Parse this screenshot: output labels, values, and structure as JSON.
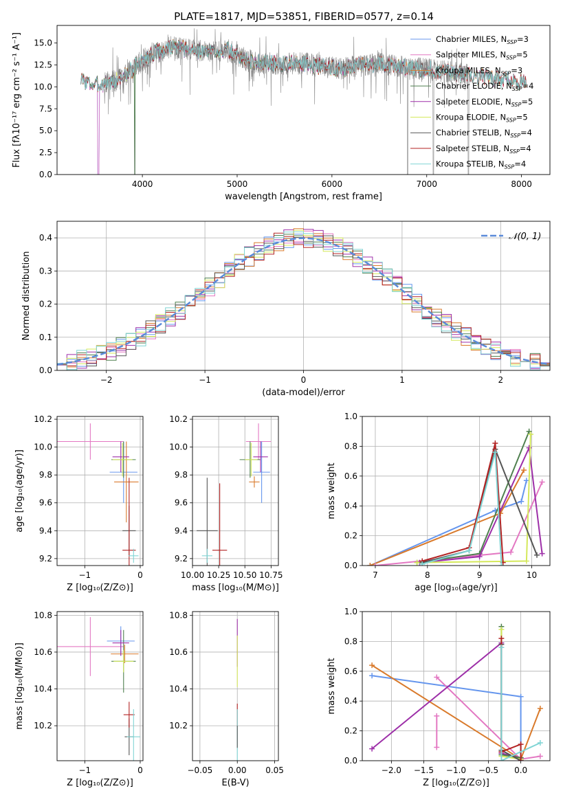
{
  "colors": {
    "chabrier_miles": "#6495ED",
    "salpeter_miles": "#E377C2",
    "kroupa_miles": "#D97A2B",
    "chabrier_elodie": "#4E7F4E",
    "salpeter_elodie": "#9D2FA8",
    "kroupa_elodie": "#D4E85A",
    "chabrier_stelib": "#555555",
    "salpeter_stelib": "#B22222",
    "kroupa_stelib": "#7FD4D4",
    "gauss": "#5B8BD9",
    "data": "#808080"
  },
  "chart_data": [
    {
      "id": "spectrum",
      "type": "line",
      "title": "PLATE=1817, MJD=53851, FIBERID=0577, z=0.14",
      "xlabel": "wavelength [Angstrom, rest frame]",
      "ylabel": "Flux [fλ10⁻¹⁷ erg cm⁻² s⁻¹ A⁻¹]",
      "xlim": [
        3100,
        8300
      ],
      "ylim": [
        0,
        17
      ],
      "xticks": [
        4000,
        5000,
        6000,
        7000,
        8000
      ],
      "yticks": [
        0.0,
        2.5,
        5.0,
        7.5,
        10.0,
        12.5,
        15.0
      ],
      "continuum": [
        [
          3350,
          10.8
        ],
        [
          3500,
          10.2
        ],
        [
          3700,
          10.6
        ],
        [
          3850,
          11.5
        ],
        [
          3950,
          12.6
        ],
        [
          4100,
          13.8
        ],
        [
          4300,
          14.5
        ],
        [
          4500,
          14.2
        ],
        [
          4700,
          14.0
        ],
        [
          4900,
          14.2
        ],
        [
          5100,
          13.0
        ],
        [
          5300,
          12.7
        ],
        [
          5500,
          12.6
        ],
        [
          5700,
          12.7
        ],
        [
          5900,
          12.3
        ],
        [
          6100,
          12.1
        ],
        [
          6300,
          12.4
        ],
        [
          6500,
          12.7
        ],
        [
          6700,
          12.3
        ],
        [
          6900,
          12.1
        ],
        [
          7100,
          11.9
        ],
        [
          7300,
          11.6
        ],
        [
          7500,
          11.3
        ],
        [
          7700,
          11.0
        ],
        [
          7900,
          10.7
        ],
        [
          8050,
          10.5
        ]
      ],
      "data_range": [
        3600,
        7450
      ],
      "model_range": [
        3350,
        8050
      ],
      "dips": [
        [
          3530,
          0
        ],
        [
          3570,
          0
        ],
        [
          3920,
          0
        ],
        [
          6800,
          0
        ],
        [
          7070,
          0
        ],
        [
          7440,
          0
        ]
      ],
      "grid": false,
      "legend_loc": "upper right",
      "legend": [
        {
          "key": "chabrier_miles",
          "label": "Chabrier MILES, N",
          "sub": "SSP",
          "n": "=3"
        },
        {
          "key": "salpeter_miles",
          "label": "Salpeter MILES, N",
          "sub": "SSP",
          "n": "=5"
        },
        {
          "key": "kroupa_miles",
          "label": "Kroupa MILES, N",
          "sub": "SSP",
          "n": "=3"
        },
        {
          "key": "chabrier_elodie",
          "label": "Chabrier ELODIE, N",
          "sub": "SSP",
          "n": "=4"
        },
        {
          "key": "salpeter_elodie",
          "label": "Salpeter ELODIE, N",
          "sub": "SSP",
          "n": "=5"
        },
        {
          "key": "kroupa_elodie",
          "label": "Kroupa ELODIE, N",
          "sub": "SSP",
          "n": "=5"
        },
        {
          "key": "chabrier_stelib",
          "label": "Chabrier STELIB, N",
          "sub": "SSP",
          "n": "=4"
        },
        {
          "key": "salpeter_stelib",
          "label": "Salpeter STELIB, N",
          "sub": "SSP",
          "n": "=4"
        },
        {
          "key": "kroupa_stelib",
          "label": "Kroupa STELIB, N",
          "sub": "SSP",
          "n": "=4"
        }
      ]
    },
    {
      "id": "residuals",
      "type": "histogram",
      "xlabel": "(data-model)/error",
      "ylabel": "Normed distribution",
      "xlim": [
        -2.5,
        2.5
      ],
      "ylim": [
        0,
        0.45
      ],
      "xticks": [
        -2,
        -1,
        0,
        1,
        2
      ],
      "yticks": [
        0.0,
        0.1,
        0.2,
        0.3,
        0.4
      ],
      "grid": true,
      "legend_loc": "upper right",
      "gauss_label": "𝒩(0, 1)",
      "bin_width": 0.1,
      "series": [
        {
          "key": "chabrier_miles"
        },
        {
          "key": "salpeter_miles"
        },
        {
          "key": "kroupa_miles"
        },
        {
          "key": "chabrier_elodie"
        },
        {
          "key": "salpeter_elodie"
        },
        {
          "key": "kroupa_elodie"
        },
        {
          "key": "chabrier_stelib"
        },
        {
          "key": "salpeter_stelib"
        },
        {
          "key": "kroupa_stelib"
        }
      ]
    },
    {
      "id": "age_vs_z",
      "type": "scatter",
      "xlabel": "Z [log₁₀(Z/Z⊙)]",
      "ylabel": "age  [log₁₀(age/yr)]",
      "xlim": [
        -1.5,
        0.05
      ],
      "ylim": [
        9.15,
        10.22
      ],
      "xticks": [
        -1,
        0
      ],
      "xticklabels": [
        "−1",
        "0"
      ],
      "yticks": [
        9.2,
        9.4,
        9.6,
        9.8,
        10.0,
        10.2
      ],
      "grid": true,
      "points": [
        {
          "key": "salpeter_miles",
          "x": -0.9,
          "y": 10.04,
          "xerr": 0.6,
          "yerr": 0.13
        },
        {
          "key": "chabrier_miles",
          "x": -0.3,
          "y": 9.82,
          "xerr": 0.25,
          "yerr": 0.22
        },
        {
          "key": "kroupa_miles",
          "x": -0.25,
          "y": 9.75,
          "xerr": 0.22,
          "yerr": 0.29
        },
        {
          "key": "chabrier_elodie",
          "x": -0.3,
          "y": 9.91,
          "xerr": 0.22,
          "yerr": 0.13
        },
        {
          "key": "salpeter_elodie",
          "x": -0.35,
          "y": 9.93,
          "xerr": 0.15,
          "yerr": 0.11
        },
        {
          "key": "kroupa_elodie",
          "x": -0.32,
          "y": 9.91,
          "xerr": 0.18,
          "yerr": 0.12
        },
        {
          "key": "chabrier_stelib",
          "x": -0.2,
          "y": 9.4,
          "xerr": 0.12,
          "yerr": 0.18
        },
        {
          "key": "salpeter_stelib",
          "x": -0.2,
          "y": 9.26,
          "xerr": 0.12,
          "yerr": 0.52
        },
        {
          "key": "kroupa_stelib",
          "x": -0.12,
          "y": 9.22,
          "xerr": 0.09,
          "yerr": 0.05
        }
      ]
    },
    {
      "id": "age_vs_mass",
      "type": "scatter",
      "xlabel": "mass [log₁₀(M/M⊙)]",
      "ylabel": "",
      "xlim": [
        10.0,
        10.82
      ],
      "ylim": [
        9.15,
        10.22
      ],
      "xticks": [
        10.0,
        10.25,
        10.5,
        10.75
      ],
      "xticklabels": [
        "10.00",
        "10.25",
        "10.50",
        "10.75"
      ],
      "yticks": [
        9.2,
        9.4,
        9.6,
        9.8,
        10.0,
        10.2
      ],
      "grid": true,
      "points": [
        {
          "key": "salpeter_miles",
          "x": 10.63,
          "y": 10.04,
          "xerr": 0.12,
          "yerr": 0.13
        },
        {
          "key": "chabrier_miles",
          "x": 10.66,
          "y": 9.82,
          "xerr": 0.08,
          "yerr": 0.22
        },
        {
          "key": "kroupa_miles",
          "x": 10.59,
          "y": 9.75,
          "xerr": 0.05,
          "yerr": 0.04
        },
        {
          "key": "chabrier_elodie",
          "x": 10.55,
          "y": 9.91,
          "xerr": 0.1,
          "yerr": 0.13
        },
        {
          "key": "salpeter_elodie",
          "x": 10.65,
          "y": 9.93,
          "xerr": 0.07,
          "yerr": 0.11
        },
        {
          "key": "kroupa_elodie",
          "x": 10.56,
          "y": 9.91,
          "xerr": 0.06,
          "yerr": 0.12
        },
        {
          "key": "chabrier_stelib",
          "x": 10.14,
          "y": 9.4,
          "xerr": 0.1,
          "yerr": 0.38
        },
        {
          "key": "salpeter_stelib",
          "x": 10.26,
          "y": 9.26,
          "xerr": 0.07,
          "yerr": 0.48
        },
        {
          "key": "kroupa_stelib",
          "x": 10.14,
          "y": 9.22,
          "xerr": 0.05,
          "yerr": 0.05
        }
      ]
    },
    {
      "id": "weight_vs_age",
      "type": "line",
      "xlabel": "age  [log₁₀(age/yr)]",
      "ylabel": "mass weight",
      "xlim": [
        6.75,
        10.35
      ],
      "ylim": [
        0,
        1
      ],
      "xticks": [
        7,
        8,
        9,
        10
      ],
      "yticks": [
        0.0,
        0.2,
        0.4,
        0.6,
        0.8,
        1.0
      ],
      "grid": true,
      "series": [
        {
          "key": "chabrier_miles",
          "points": [
            [
              6.9,
              0.0
            ],
            [
              9.3,
              0.37
            ],
            [
              9.8,
              0.43
            ],
            [
              9.9,
              0.57
            ]
          ]
        },
        {
          "key": "kroupa_miles",
          "points": [
            [
              6.9,
              0.0
            ],
            [
              9.4,
              0.35
            ],
            [
              9.85,
              0.64
            ]
          ]
        },
        {
          "key": "salpeter_miles",
          "points": [
            [
              7.0,
              0.0
            ],
            [
              9.6,
              0.09
            ],
            [
              10.2,
              0.56
            ]
          ]
        },
        {
          "key": "chabrier_elodie",
          "points": [
            [
              7.8,
              0.02
            ],
            [
              9.0,
              0.08
            ],
            [
              9.95,
              0.9
            ]
          ]
        },
        {
          "key": "salpeter_elodie",
          "points": [
            [
              7.85,
              0.02
            ],
            [
              9.0,
              0.06
            ],
            [
              9.95,
              0.79
            ],
            [
              10.2,
              0.08
            ]
          ]
        },
        {
          "key": "kroupa_elodie",
          "points": [
            [
              7.8,
              0.02
            ],
            [
              9.9,
              0.03
            ],
            [
              9.98,
              0.88
            ]
          ]
        },
        {
          "key": "chabrier_stelib",
          "points": [
            [
              7.9,
              0.02
            ],
            [
              8.8,
              0.1
            ],
            [
              9.3,
              0.78
            ],
            [
              10.1,
              0.07
            ]
          ]
        },
        {
          "key": "salpeter_stelib",
          "points": [
            [
              7.9,
              0.03
            ],
            [
              8.8,
              0.12
            ],
            [
              9.3,
              0.82
            ],
            [
              9.45,
              0.02
            ]
          ]
        },
        {
          "key": "kroupa_stelib",
          "points": [
            [
              7.9,
              0.01
            ],
            [
              8.8,
              0.1
            ],
            [
              9.3,
              0.76
            ],
            [
              9.42,
              0.0
            ]
          ]
        }
      ]
    },
    {
      "id": "mass_vs_z",
      "type": "scatter",
      "xlabel": "Z [log₁₀(Z/Z⊙)]",
      "ylabel": "mass [log₁₀(M/M⊙)]",
      "xlim": [
        -1.5,
        0.05
      ],
      "ylim": [
        10.01,
        10.82
      ],
      "xticks": [
        -1,
        0
      ],
      "xticklabels": [
        "−1",
        "0"
      ],
      "yticks": [
        10.2,
        10.4,
        10.6,
        10.8
      ],
      "grid": true,
      "points": [
        {
          "key": "salpeter_miles",
          "x": -0.9,
          "y": 10.63,
          "xerr": 0.6,
          "yerr": 0.16
        },
        {
          "key": "chabrier_miles",
          "x": -0.35,
          "y": 10.66,
          "xerr": 0.25,
          "yerr": 0.08
        },
        {
          "key": "kroupa_miles",
          "x": -0.28,
          "y": 10.59,
          "xerr": 0.25,
          "yerr": 0.05
        },
        {
          "key": "chabrier_elodie",
          "x": -0.3,
          "y": 10.55,
          "xerr": 0.22,
          "yerr": 0.17
        },
        {
          "key": "salpeter_elodie",
          "x": -0.35,
          "y": 10.65,
          "xerr": 0.15,
          "yerr": 0.07
        },
        {
          "key": "kroupa_elodie",
          "x": -0.3,
          "y": 10.55,
          "xerr": 0.18,
          "yerr": 0.06
        },
        {
          "key": "chabrier_stelib",
          "x": -0.2,
          "y": 10.14,
          "xerr": 0.08,
          "yerr": 0.1
        },
        {
          "key": "salpeter_stelib",
          "x": -0.2,
          "y": 10.26,
          "xerr": 0.1,
          "yerr": 0.07
        },
        {
          "key": "kroupa_stelib",
          "x": -0.12,
          "y": 10.14,
          "xerr": 0.12,
          "yerr": 0.15
        }
      ]
    },
    {
      "id": "mass_vs_ebv",
      "type": "scatter",
      "xlabel": "E(B-V)",
      "ylabel": "",
      "xlim": [
        -0.06,
        0.055
      ],
      "ylim": [
        10.01,
        10.82
      ],
      "xticks": [
        -0.05,
        0.0,
        0.05
      ],
      "xticklabels": [
        "−0.05",
        "0.00",
        "0.05"
      ],
      "yticks": [
        10.2,
        10.4,
        10.6,
        10.8
      ],
      "grid": true,
      "points": [
        {
          "key": "salpeter_elodie",
          "x": 0.0,
          "y": 10.65,
          "xerr": 0,
          "yerr": 0.13
        },
        {
          "key": "kroupa_elodie",
          "x": 0.0,
          "y": 10.55,
          "xerr": 0,
          "yerr": 0.14
        },
        {
          "key": "salpeter_stelib",
          "x": 0.0,
          "y": 10.26,
          "xerr": 0,
          "yerr": 0.06
        },
        {
          "key": "kroupa_stelib",
          "x": 0.0,
          "y": 10.14,
          "xerr": 0,
          "yerr": 0.15
        },
        {
          "key": "chabrier_stelib",
          "x": 0.0,
          "y": 10.14,
          "xerr": 0,
          "yerr": 0.06
        }
      ]
    },
    {
      "id": "weight_vs_z",
      "type": "line",
      "xlabel": "Z [log₁₀(Z/Z⊙)]",
      "ylabel": "mass weight",
      "xlim": [
        -2.45,
        0.45
      ],
      "ylim": [
        0,
        1
      ],
      "xticks": [
        -2.0,
        -1.5,
        -1.0,
        -0.5,
        0.0
      ],
      "xticklabels": [
        "−2.0",
        "−1.5",
        "−1.0",
        "−0.5",
        "0.0"
      ],
      "yticks": [
        0.0,
        0.2,
        0.4,
        0.6,
        0.8,
        1.0
      ],
      "grid": true,
      "series": [
        {
          "key": "chabrier_miles",
          "points": [
            [
              -2.3,
              0.57
            ],
            [
              0.0,
              0.43
            ],
            [
              0.0,
              0.0
            ]
          ]
        },
        {
          "key": "kroupa_miles",
          "points": [
            [
              -2.3,
              0.64
            ],
            [
              0.0,
              0.01
            ],
            [
              0.3,
              0.35
            ]
          ]
        },
        {
          "key": "salpeter_miles",
          "points": [
            [
              -1.3,
              0.56
            ],
            [
              0.0,
              0.01
            ],
            [
              0.3,
              0.03
            ]
          ]
        },
        {
          "key": "salpeter_miles",
          "points": [
            [
              -1.3,
              0.09
            ],
            [
              -1.3,
              0.3
            ]
          ]
        },
        {
          "key": "salpeter_elodie",
          "points": [
            [
              -2.3,
              0.08
            ],
            [
              -0.3,
              0.79
            ],
            [
              -0.3,
              0.05
            ],
            [
              0.0,
              0.02
            ]
          ]
        },
        {
          "key": "chabrier_elodie",
          "points": [
            [
              -0.3,
              0.9
            ],
            [
              -0.3,
              0.04
            ],
            [
              0.0,
              0.02
            ]
          ]
        },
        {
          "key": "kroupa_elodie",
          "points": [
            [
              -0.3,
              0.88
            ],
            [
              -0.3,
              0.03
            ],
            [
              0.0,
              0.01
            ]
          ]
        },
        {
          "key": "chabrier_stelib",
          "points": [
            [
              -0.3,
              0.78
            ],
            [
              -0.3,
              0.07
            ],
            [
              0.0,
              0.0
            ]
          ]
        },
        {
          "key": "salpeter_stelib",
          "points": [
            [
              -0.3,
              0.82
            ],
            [
              -0.3,
              0.06
            ],
            [
              0.0,
              0.11
            ],
            [
              0.0,
              0.0
            ]
          ]
        },
        {
          "key": "kroupa_stelib",
          "points": [
            [
              -0.3,
              0.76
            ],
            [
              -0.3,
              0.0
            ],
            [
              0.3,
              0.12
            ]
          ]
        }
      ]
    }
  ]
}
